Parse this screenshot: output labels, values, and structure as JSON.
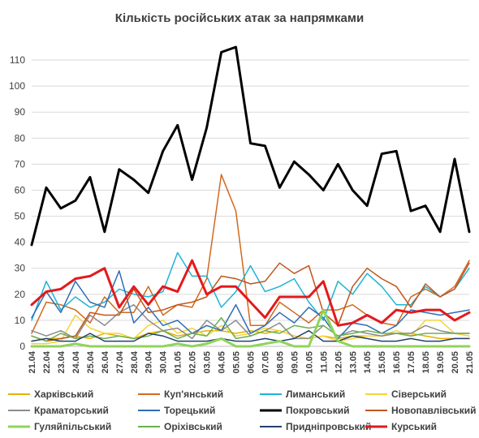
{
  "chart_data": {
    "type": "line",
    "title": "Кількість російських атак за напрямками",
    "xlabel": "",
    "ylabel": "",
    "ylim": [
      0,
      115
    ],
    "yticks": [
      0,
      10,
      20,
      30,
      40,
      50,
      60,
      70,
      80,
      90,
      100,
      110
    ],
    "grid": "horizontal",
    "legend": "bottom",
    "x": [
      "21.04",
      "22.04",
      "23.04",
      "24.04",
      "25.04",
      "26.04",
      "27.04",
      "28.04",
      "29.04",
      "30.04",
      "01.05",
      "02.05",
      "03.05",
      "04.05",
      "05.05",
      "06.05",
      "07.05",
      "08.05",
      "09.05",
      "10.05",
      "11.05",
      "12.05",
      "13.05",
      "14.05",
      "15.05",
      "16.05",
      "17.05",
      "18.05",
      "19.05",
      "20.05",
      "21.05"
    ],
    "series": [
      {
        "name": "Харківський",
        "color": "#E8B000",
        "width": 1.5,
        "values": [
          2,
          3,
          3,
          4,
          3,
          5,
          4,
          3,
          5,
          6,
          4,
          5,
          6,
          6,
          5,
          6,
          5,
          6,
          4,
          3,
          4,
          3,
          4,
          4,
          4,
          5,
          5,
          4,
          3,
          3,
          3
        ]
      },
      {
        "name": "Куп'янський",
        "color": "#D2691E",
        "width": 1.5,
        "values": [
          5,
          17,
          16,
          14,
          9,
          19,
          13,
          13,
          23,
          12,
          16,
          15,
          26,
          66,
          52,
          8,
          8,
          17,
          13,
          9,
          14,
          14,
          16,
          12,
          9,
          8,
          19,
          22,
          19,
          23,
          33
        ]
      },
      {
        "name": "Лиманський",
        "color": "#1FB3D6",
        "width": 1.5,
        "values": [
          10,
          25,
          14,
          19,
          15,
          17,
          22,
          20,
          19,
          21,
          36,
          27,
          27,
          15,
          21,
          31,
          21,
          23,
          26,
          17,
          10,
          25,
          20,
          28,
          23,
          16,
          16,
          23,
          19,
          22,
          30
        ]
      },
      {
        "name": "Сіверський",
        "color": "#F5D33A",
        "width": 1.5,
        "values": [
          1,
          1,
          2,
          12,
          7,
          5,
          5,
          3,
          8,
          10,
          5,
          7,
          4,
          8,
          4,
          5,
          7,
          6,
          4,
          3,
          4,
          2,
          3,
          4,
          4,
          6,
          4,
          10,
          10,
          5,
          4
        ]
      },
      {
        "name": "Краматорський",
        "color": "#8C8C8C",
        "width": 1.5,
        "values": [
          6,
          4,
          6,
          3,
          12,
          8,
          13,
          16,
          10,
          6,
          7,
          3,
          10,
          6,
          10,
          4,
          6,
          9,
          3,
          3,
          8,
          4,
          6,
          5,
          4,
          5,
          5,
          8,
          6,
          5,
          5
        ]
      },
      {
        "name": "Торецький",
        "color": "#2E6DB4",
        "width": 1.5,
        "values": [
          11,
          21,
          13,
          25,
          17,
          15,
          29,
          9,
          15,
          8,
          10,
          5,
          8,
          6,
          16,
          5,
          8,
          13,
          9,
          15,
          11,
          3,
          9,
          8,
          5,
          8,
          14,
          13,
          12,
          13,
          14
        ]
      },
      {
        "name": "Покровський",
        "color": "#000000",
        "width": 3,
        "values": [
          39,
          61,
          53,
          56,
          65,
          44,
          68,
          64,
          59,
          75,
          85,
          64,
          84,
          113,
          115,
          78,
          77,
          61,
          71,
          66,
          60,
          70,
          60,
          54,
          74,
          75,
          52,
          54,
          44,
          72,
          44
        ]
      },
      {
        "name": "Новопавлівський",
        "color": "#C0561A",
        "width": 1.5,
        "values": [
          4,
          2,
          3,
          4,
          13,
          12,
          12,
          22,
          13,
          14,
          16,
          17,
          19,
          27,
          26,
          24,
          25,
          32,
          28,
          31,
          13,
          8,
          23,
          30,
          26,
          23,
          15,
          24,
          19,
          22,
          32
        ]
      },
      {
        "name": "Гуляйпільський",
        "color": "#8FD45A",
        "width": 3,
        "values": [
          0,
          0,
          0,
          1,
          0,
          0,
          0,
          0,
          0,
          0,
          1,
          0,
          1,
          3,
          0,
          0,
          1,
          2,
          0,
          0,
          14,
          2,
          0,
          0,
          0,
          0,
          0,
          0,
          0,
          0,
          0
        ]
      },
      {
        "name": "Оріхівський",
        "color": "#6BB04E",
        "width": 1.5,
        "values": [
          4,
          2,
          5,
          3,
          4,
          3,
          4,
          3,
          4,
          6,
          3,
          5,
          4,
          11,
          3,
          4,
          6,
          5,
          8,
          7,
          8,
          4,
          5,
          6,
          5,
          5,
          4,
          5,
          5,
          5,
          5
        ]
      },
      {
        "name": "Придніпровський",
        "color": "#24406E",
        "width": 1.5,
        "values": [
          2,
          3,
          2,
          2,
          5,
          2,
          2,
          2,
          5,
          4,
          2,
          2,
          2,
          3,
          2,
          2,
          3,
          2,
          3,
          6,
          2,
          2,
          4,
          3,
          2,
          2,
          3,
          2,
          2,
          3,
          3
        ]
      },
      {
        "name": "Курський",
        "color": "#E31A1C",
        "width": 3,
        "values": [
          16,
          21,
          22,
          26,
          27,
          30,
          15,
          23,
          16,
          23,
          21,
          33,
          20,
          23,
          23,
          17,
          11,
          19,
          19,
          19,
          25,
          8,
          9,
          12,
          9,
          14,
          13,
          14,
          14,
          10,
          13
        ]
      }
    ]
  }
}
